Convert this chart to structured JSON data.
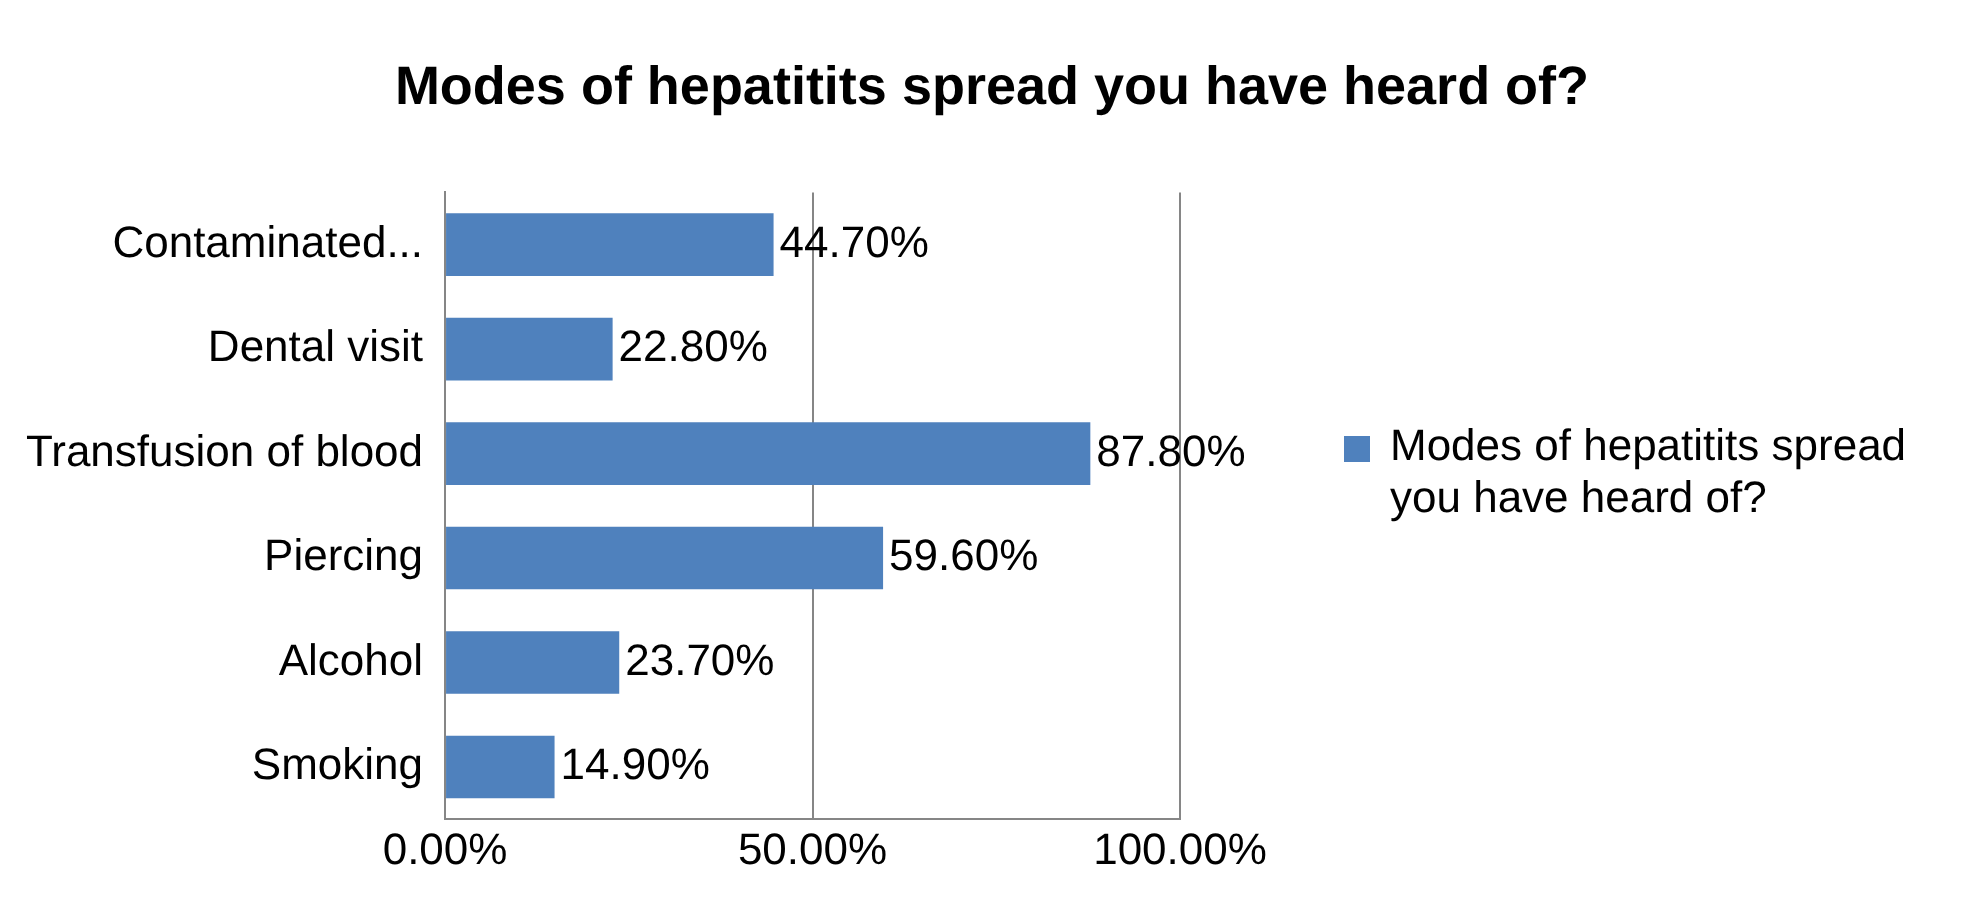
{
  "chart_data": {
    "type": "bar",
    "orientation": "horizontal",
    "title": "Modes of hepatitits spread you have heard of?",
    "categories": [
      "Contaminated...",
      "Dental visit",
      "Transfusion of blood",
      "Piercing",
      "Alcohol",
      "Smoking"
    ],
    "series": [
      {
        "name": "Modes of hepatitits spread you have heard of?",
        "color": "#4f81bd",
        "values": [
          44.7,
          22.8,
          87.8,
          59.6,
          23.7,
          14.9
        ],
        "value_labels": [
          "44.70%",
          "22.80%",
          "87.80%",
          "59.60%",
          "23.70%",
          "14.90%"
        ]
      }
    ],
    "xlim": [
      0,
      100
    ],
    "xticks": [
      {
        "value": 0,
        "label": "0.00%"
      },
      {
        "value": 50,
        "label": "50.00%"
      },
      {
        "value": 100,
        "label": "100.00%"
      }
    ],
    "grid": "x",
    "legend": "right"
  }
}
